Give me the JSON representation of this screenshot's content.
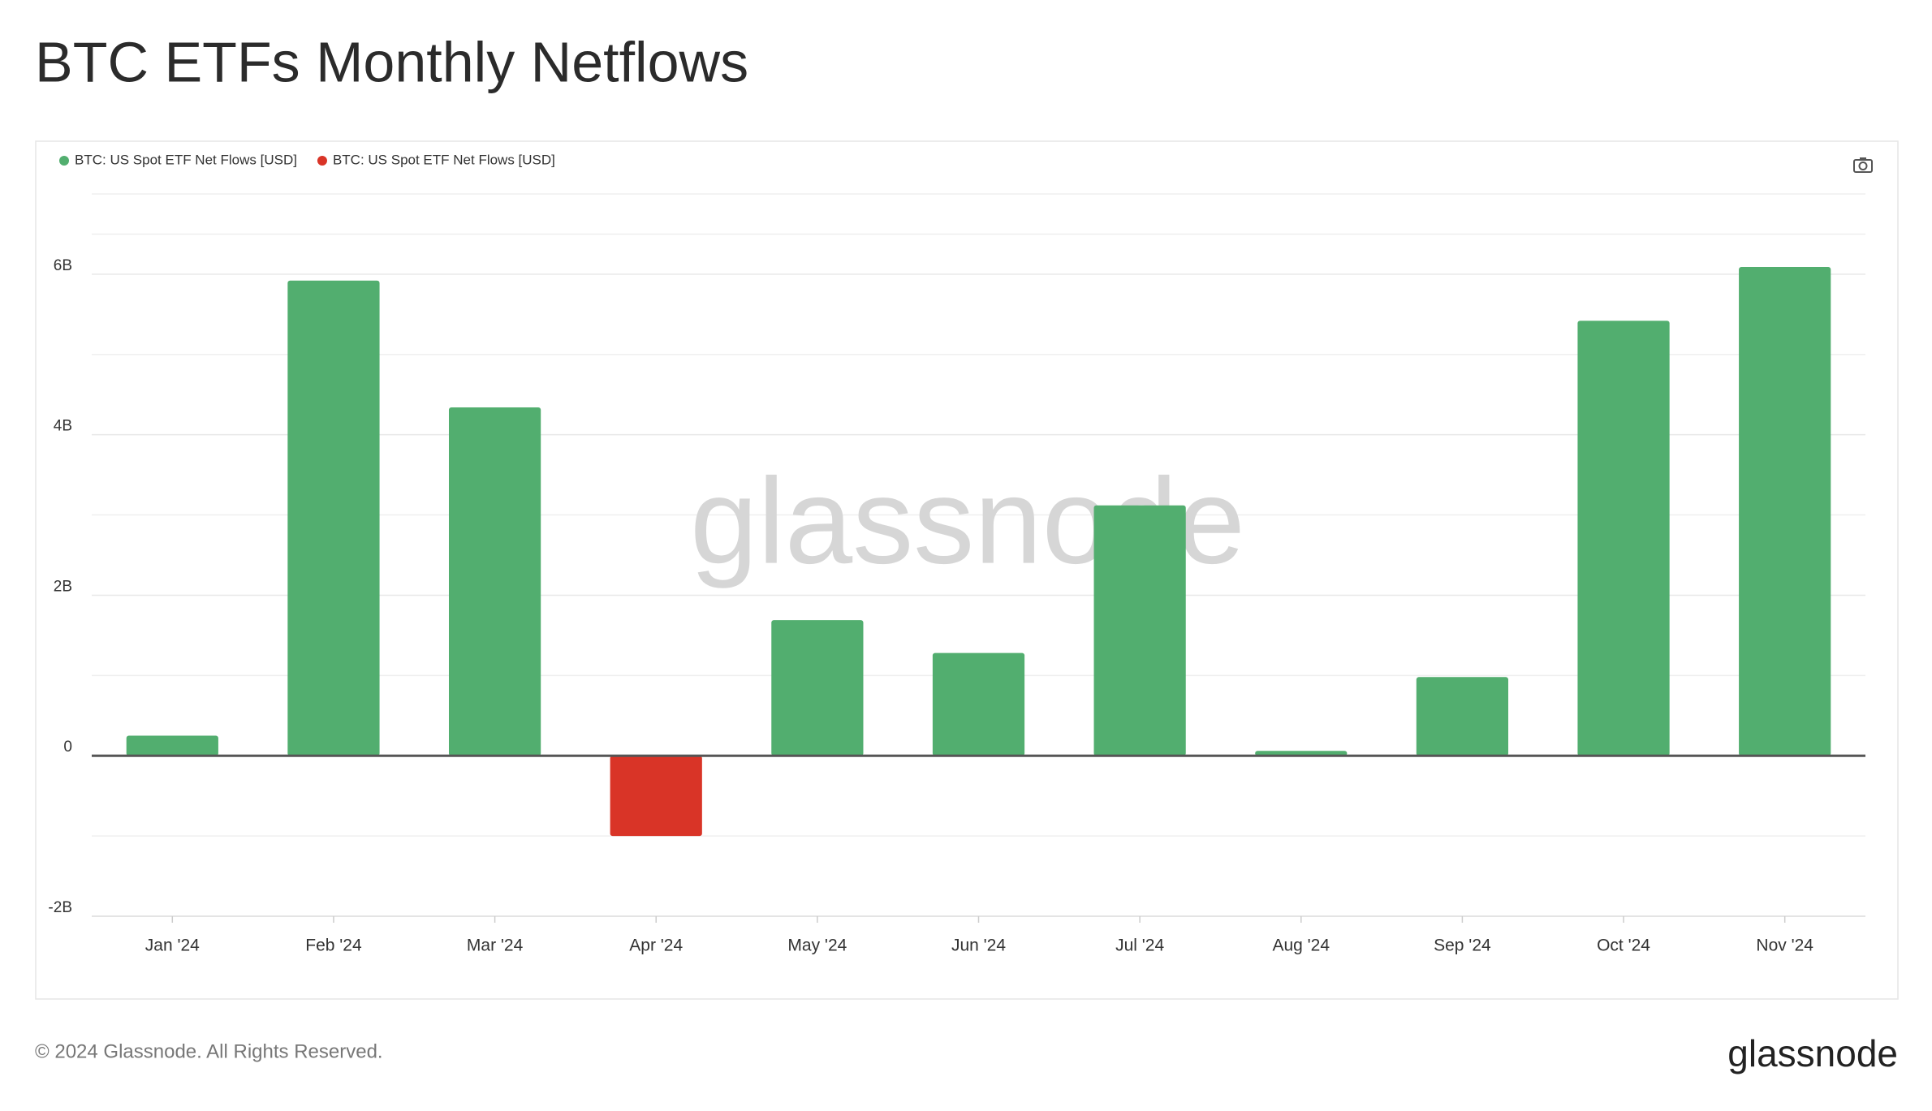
{
  "chart_data": {
    "type": "bar",
    "title": "BTC ETFs Monthly Netflows",
    "watermark": "glassnode",
    "categories": [
      "Jan '24",
      "Feb '24",
      "Mar '24",
      "Apr '24",
      "May '24",
      "Jun '24",
      "Jul '24",
      "Aug '24",
      "Sep '24",
      "Oct '24",
      "Nov '24"
    ],
    "series": [
      {
        "name": "BTC: US Spot ETF Net Flows [USD]",
        "color": "#52ae6f",
        "values": [
          0.25,
          5.92,
          4.34,
          null,
          1.69,
          1.28,
          3.12,
          0.06,
          0.98,
          5.42,
          6.09
        ]
      },
      {
        "name": "BTC: US Spot ETF Net Flows [USD]",
        "color": "#d93427",
        "values": [
          null,
          null,
          null,
          -1.0,
          null,
          null,
          null,
          null,
          null,
          null,
          null
        ]
      }
    ],
    "ylim": [
      -2,
      7
    ],
    "yticks": [
      {
        "value": -2,
        "label": "-2B"
      },
      0,
      {
        "value": 2,
        "label": "2B"
      },
      {
        "value": 4,
        "label": "4B"
      },
      {
        "value": 6,
        "label": "6B"
      }
    ],
    "grid": true,
    "minor_grid": true
  },
  "footer": {
    "copyright": "© 2024 Glassnode. All Rights Reserved.",
    "logo": "glassnode"
  }
}
